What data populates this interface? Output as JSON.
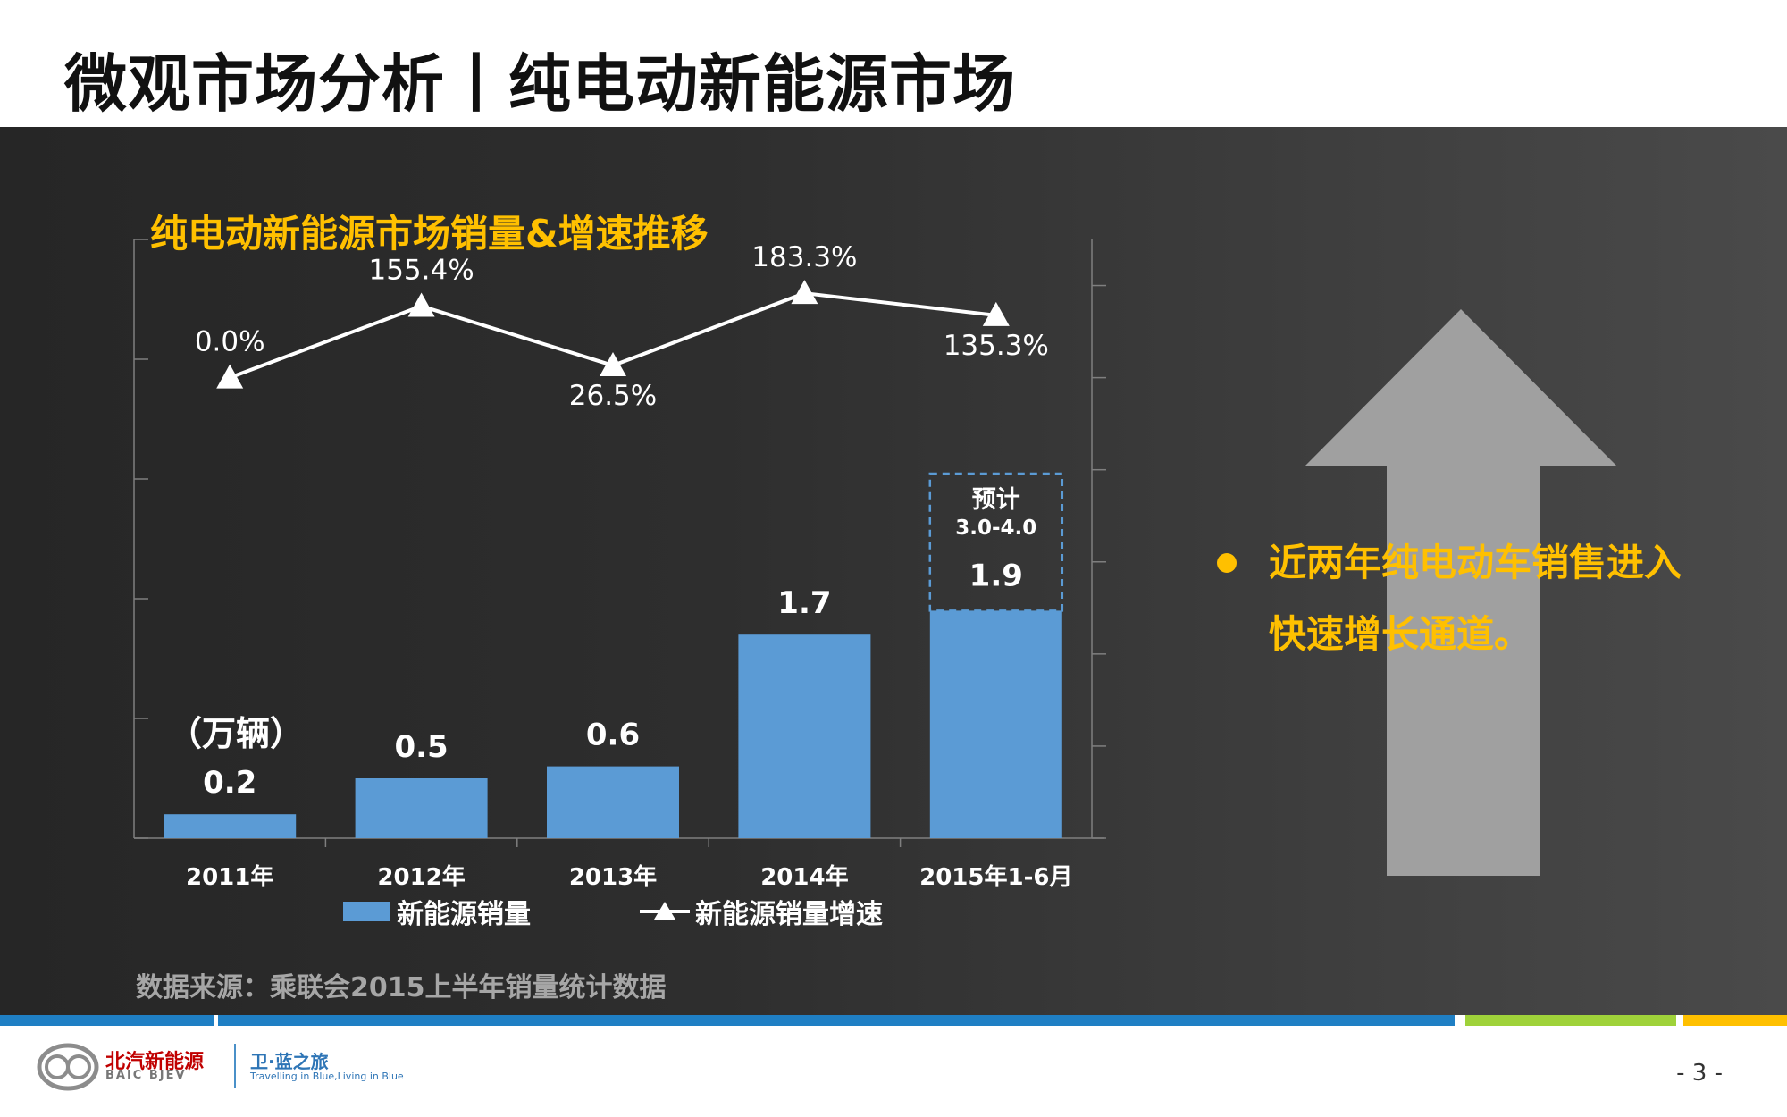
{
  "page": {
    "title": "微观市场分析丨纯电动新能源市场",
    "page_number": "- 3 -"
  },
  "chart": {
    "title": "纯电动新能源市场销量&增速推移",
    "unit_label": "（万辆）",
    "forecast_label": "预计",
    "forecast_range": "3.0-4.0",
    "legend": {
      "bar_label": "新能源销量",
      "line_label": "新能源销量增速"
    },
    "source": "数据来源：乘联会2015上半年销量统计数据"
  },
  "chart_data": {
    "type": "bar",
    "title": "纯电动新能源市场销量&增速推移",
    "categories": [
      "2011年",
      "2012年",
      "2013年",
      "2014年",
      "2015年1-6月"
    ],
    "series": [
      {
        "name": "新能源销量",
        "type": "bar",
        "axis": "left",
        "unit": "万辆",
        "values": [
          0.2,
          0.5,
          0.6,
          1.7,
          1.9
        ],
        "labels": [
          "0.2",
          "0.5",
          "0.6",
          "1.7",
          "1.9"
        ]
      },
      {
        "name": "新能源销量增速",
        "type": "line",
        "marker": "triangle",
        "axis": "right",
        "values": [
          0.0,
          155.4,
          26.5,
          183.3,
          135.3
        ],
        "labels": [
          "0.0%",
          "155.4%",
          "26.5%",
          "183.3%",
          "135.3%"
        ]
      }
    ],
    "forecast": {
      "category": "2015年1-6月",
      "label": "预计",
      "range": "3.0-4.0",
      "outline": "dashed"
    },
    "ylim": [
      0,
      5
    ],
    "y2lim": [
      -1000,
      300
    ],
    "grid": false,
    "legend_position": "bottom",
    "colors": {
      "bar": "#5b9bd5",
      "line": "#ffffff"
    }
  },
  "side_panel": {
    "bullet": "近两年纯电动车销售进入快速增长通道。",
    "accent_color": "#ffc000",
    "graphic": "up-arrow"
  },
  "footer": {
    "brand_cn": "北汽新能源",
    "brand_en": "BAIC BJEV",
    "slogan_cn": "卫·蓝之旅",
    "slogan_en": "Travelling in Blue,Living in Blue"
  }
}
